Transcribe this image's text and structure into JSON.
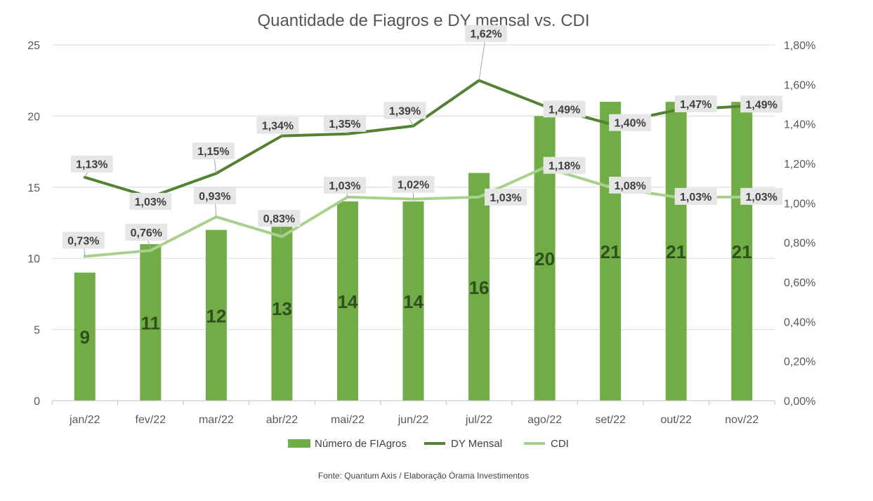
{
  "chart_data": {
    "type": "bar+line",
    "title": "Quantidade de Fiagros e DY mensal vs. CDI",
    "categories": [
      "jan/22",
      "fev/22",
      "mar/22",
      "abr/22",
      "mai/22",
      "jun/22",
      "jul/22",
      "ago/22",
      "set/22",
      "out/22",
      "nov/22"
    ],
    "y_left": {
      "ticks": [
        "0",
        "5",
        "10",
        "15",
        "20",
        "25"
      ],
      "range": [
        0,
        25
      ]
    },
    "y_right": {
      "ticks": [
        "0,00%",
        "0,20%",
        "0,40%",
        "0,60%",
        "0,80%",
        "1,00%",
        "1,20%",
        "1,40%",
        "1,60%",
        "1,80%"
      ],
      "range": [
        0,
        1.8
      ]
    },
    "grid": true,
    "legend_position": "bottom",
    "series": [
      {
        "name": "Número de FIAgros",
        "kind": "bar",
        "axis": "left",
        "color": "#70ad47",
        "values": [
          9,
          11,
          12,
          13,
          14,
          14,
          16,
          20,
          21,
          21,
          21
        ],
        "labels": [
          "9",
          "11",
          "12",
          "13",
          "14",
          "14",
          "16",
          "20",
          "21",
          "21",
          "21"
        ]
      },
      {
        "name": "DY Mensal",
        "kind": "line",
        "axis": "right",
        "color": "#548235",
        "values": [
          1.13,
          1.03,
          1.15,
          1.34,
          1.35,
          1.39,
          1.62,
          1.49,
          1.4,
          1.47,
          1.49
        ],
        "labels": [
          "1,13%",
          "1,03%",
          "1,15%",
          "1,34%",
          "1,35%",
          "1,39%",
          "1,62%",
          "1,49%",
          "1,40%",
          "1,47%",
          "1,49%"
        ]
      },
      {
        "name": "CDI",
        "kind": "line",
        "axis": "right",
        "color": "#a9d18e",
        "values": [
          0.73,
          0.76,
          0.93,
          0.83,
          1.03,
          1.02,
          1.03,
          1.18,
          1.08,
          1.03,
          1.03
        ],
        "labels": [
          "0,73%",
          "0,76%",
          "0,93%",
          "0,83%",
          "1,03%",
          "1,02%",
          "1,03%",
          "1,18%",
          "1,08%",
          "1,03%",
          "1,03%"
        ]
      }
    ],
    "source": "Fonte: Quantum Axis / Elaboração Órama Investimentos"
  }
}
